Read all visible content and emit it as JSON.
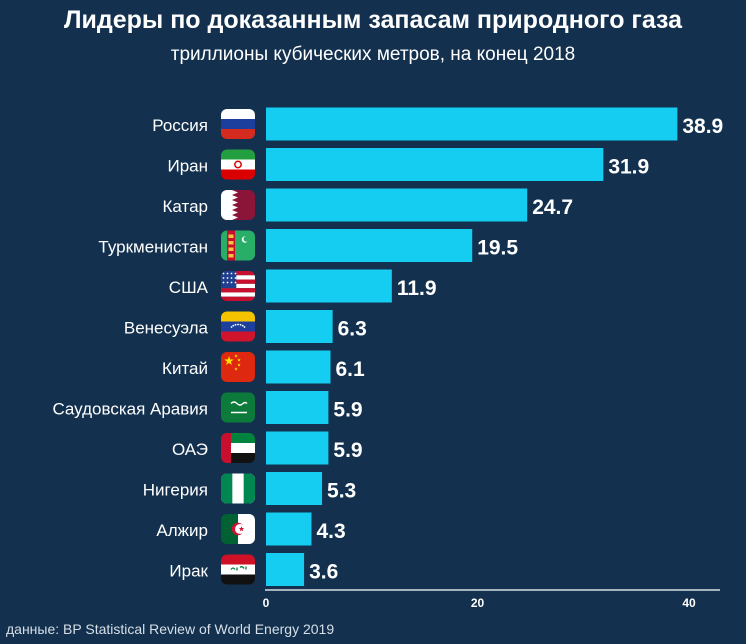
{
  "title": "Лидеры по доказанным запасам природного газа",
  "subtitle": "триллионы кубических метров, на конец 2018",
  "source": "данные: BP Statistical Review of World Energy 2019",
  "colors": {
    "background": "#13314e",
    "bar": "#15cdf0",
    "text": "#ffffff"
  },
  "chart_data": {
    "type": "bar",
    "orientation": "horizontal",
    "title": "Лидеры по доказанным запасам природного газа",
    "subtitle": "триллионы кубических метров, на конец 2018",
    "xlim": [
      0,
      40
    ],
    "ticks": [
      "0",
      "20",
      "40"
    ],
    "tick_values": [
      0,
      20,
      40
    ],
    "categories": [
      "Россия",
      "Иран",
      "Катар",
      "Туркменистан",
      "США",
      "Венесуэла",
      "Китай",
      "Саудовская Аравия",
      "ОАЭ",
      "Нигерия",
      "Алжир",
      "Ирак"
    ],
    "values": [
      38.9,
      31.9,
      24.7,
      19.5,
      11.9,
      6.3,
      6.1,
      5.9,
      5.9,
      5.3,
      4.3,
      3.6
    ],
    "value_labels": [
      "38.9",
      "31.9",
      "24.7",
      "19.5",
      "11.9",
      "6.3",
      "6.1",
      "5.9",
      "5.9",
      "5.3",
      "4.3",
      "3.6"
    ],
    "flag_icons": [
      "flag-russia-icon",
      "flag-iran-icon",
      "flag-qatar-icon",
      "flag-turkmenistan-icon",
      "flag-usa-icon",
      "flag-venezuela-icon",
      "flag-china-icon",
      "flag-saudi-arabia-icon",
      "flag-uae-icon",
      "flag-nigeria-icon",
      "flag-algeria-icon",
      "flag-iraq-icon"
    ]
  }
}
